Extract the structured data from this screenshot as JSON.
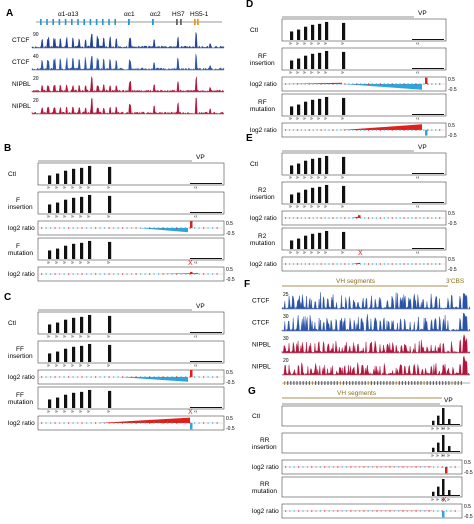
{
  "panels": {
    "A": {
      "letter": "A",
      "genes": [
        "α1-α13",
        "αc1",
        "αc2",
        "HS7",
        "HS5-1"
      ],
      "tracks": [
        {
          "label": "CTCF",
          "scale": "90",
          "color": "#1f3f8f"
        },
        {
          "label": "CTCF",
          "scale": "40",
          "color": "#2a53a8"
        },
        {
          "label": "NIPBL",
          "scale": "20",
          "color": "#b0163c"
        },
        {
          "label": "NIPBL",
          "scale": "20",
          "color": "#b0163c"
        }
      ]
    },
    "B": {
      "letter": "B",
      "vp": "VP",
      "rows": [
        {
          "type": "bars",
          "label": "Ctl"
        },
        {
          "type": "bars",
          "label": "F insertion"
        },
        {
          "type": "ratio",
          "label": "log2 ratio",
          "top": "0.5",
          "bottom": "-0.5"
        },
        {
          "type": "bars",
          "label": "F mutation"
        },
        {
          "type": "ratio",
          "label": "log2 ratio",
          "top": "0.5",
          "bottom": "-0.5"
        }
      ]
    },
    "C": {
      "letter": "C",
      "vp": "VP",
      "rows": [
        {
          "type": "bars",
          "label": "Ctl"
        },
        {
          "type": "bars",
          "label": "FF insertion"
        },
        {
          "type": "ratio",
          "label": "log2 ratio",
          "top": "0.5",
          "bottom": "-0.5"
        },
        {
          "type": "bars",
          "label": "FF mutation"
        },
        {
          "type": "ratio",
          "label": "log2 ratio",
          "top": "0.5",
          "bottom": "-0.5"
        }
      ]
    },
    "D": {
      "letter": "D",
      "vp": "VP",
      "rows": [
        {
          "type": "bars",
          "label": "Ctl"
        },
        {
          "type": "bars",
          "label": "RF insertion"
        },
        {
          "type": "ratio",
          "label": "log2 ratio",
          "top": "0.5",
          "bottom": "-0.5"
        },
        {
          "type": "bars",
          "label": "RF mutation"
        },
        {
          "type": "ratio",
          "label": "log2 ratio",
          "top": "0.5",
          "bottom": "-0.5"
        }
      ]
    },
    "E": {
      "letter": "E",
      "vp": "VP",
      "rows": [
        {
          "type": "bars",
          "label": "Ctl"
        },
        {
          "type": "bars",
          "label": "R2 insertion"
        },
        {
          "type": "ratio",
          "label": "log2 ratio",
          "top": "0.5",
          "bottom": "-0.5"
        },
        {
          "type": "bars",
          "label": "R2 mutation"
        },
        {
          "type": "ratio",
          "label": "log2 ratio",
          "top": "0.5",
          "bottom": "-0.5"
        }
      ]
    },
    "F": {
      "letter": "F",
      "segments": "VH segments",
      "cbs": "3'CBS",
      "tracks": [
        {
          "label": "CTCF",
          "scale": "25",
          "color": "#2a53a8"
        },
        {
          "label": "CTCF",
          "scale": "30",
          "color": "#2a53a8"
        },
        {
          "label": "NIPBL",
          "scale": "30",
          "color": "#b0163c"
        },
        {
          "label": "NIPBL",
          "scale": "20",
          "color": "#b0163c"
        }
      ]
    },
    "G": {
      "letter": "G",
      "segments": "VH segments",
      "vp": "VP",
      "rows": [
        {
          "type": "bars",
          "label": "Ctl"
        },
        {
          "type": "bars",
          "label": "RR insertion"
        },
        {
          "type": "ratio",
          "label": "log2 ratio",
          "top": "0.5",
          "bottom": "-0.5"
        },
        {
          "type": "bars",
          "label": "RR mutation"
        },
        {
          "type": "ratio",
          "label": "log2 ratio",
          "top": "0.5",
          "bottom": "-0.5"
        }
      ]
    }
  },
  "colors": {
    "bar": "#111111",
    "gain": "#e0201b",
    "loss": "#2ea6dc",
    "ctcf": "#1f3f8f",
    "nipbl": "#b0163c",
    "gene": "#1a9bd7",
    "hs51": "#e59b1b",
    "gold": "#8a6d1e"
  }
}
